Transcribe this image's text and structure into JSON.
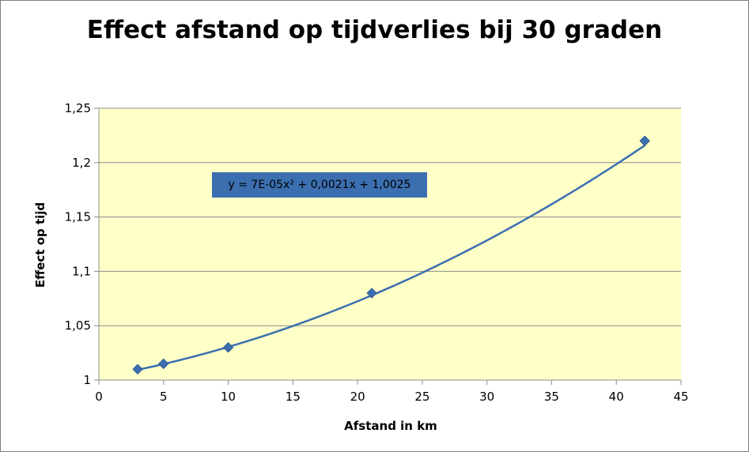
{
  "chart_data": {
    "type": "scatter",
    "title": "Effect afstand op tijdverlies bij 30 graden",
    "xlabel": "Afstand in km",
    "ylabel": "Effect op tijd",
    "xlim": [
      0,
      45
    ],
    "ylim": [
      1,
      1.25
    ],
    "x_ticks": [
      "0",
      "5",
      "10",
      "15",
      "20",
      "25",
      "30",
      "35",
      "40",
      "45"
    ],
    "y_ticks": [
      "1",
      "1,05",
      "1,1",
      "1,15",
      "1,2",
      "1,25"
    ],
    "grid": "horizontal",
    "plot_background": "#ffffc8",
    "series": [
      {
        "color": "#3b6fb0",
        "marker": "diamond",
        "x": [
          3,
          5,
          10,
          21.1,
          42.2
        ],
        "y": [
          1.01,
          1.015,
          1.03,
          1.08,
          1.22
        ]
      }
    ],
    "trendline": {
      "type": "polynomial-2",
      "label": "y = 7E-05x² + 0,0021x + 1,0025",
      "coefficients": [
        7e-05,
        0.0021,
        1.0025
      ]
    }
  }
}
